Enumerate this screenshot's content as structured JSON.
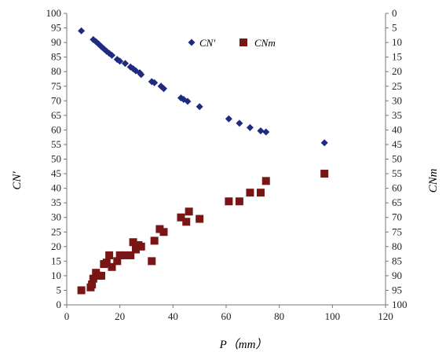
{
  "chart_data": {
    "type": "scatter",
    "xlabel": "P（mm）",
    "ylabel_left": "CN′",
    "ylabel_right": "CNm",
    "xlim": [
      0,
      120
    ],
    "xticks": [
      "0",
      "20",
      "40",
      "60",
      "80",
      "100",
      "120"
    ],
    "ylim_left": [
      0,
      100
    ],
    "yticks_left": [
      "0",
      "5",
      "10",
      "15",
      "20",
      "25",
      "30",
      "35",
      "40",
      "45",
      "50",
      "55",
      "60",
      "65",
      "70",
      "75",
      "80",
      "85",
      "90",
      "95",
      "100"
    ],
    "ylim_right_inverted": [
      100,
      0
    ],
    "yticks_right": [
      "100",
      "95",
      "90",
      "85",
      "80",
      "75",
      "70",
      "65",
      "60",
      "55",
      "50",
      "45",
      "40",
      "35",
      "30",
      "25",
      "20",
      "15",
      "10",
      "5",
      "0"
    ],
    "legend_position": "top-center",
    "series": [
      {
        "name": "CN′",
        "axis": "left",
        "marker": "diamond",
        "color": "#1f2a80",
        "points": [
          [
            5.5,
            94
          ],
          [
            10,
            91
          ],
          [
            11,
            90.3
          ],
          [
            12,
            89.5
          ],
          [
            13,
            88.6
          ],
          [
            14,
            87.8
          ],
          [
            15,
            87
          ],
          [
            16,
            86.3
          ],
          [
            17,
            85.6
          ],
          [
            19,
            84.2
          ],
          [
            20,
            83.6
          ],
          [
            22,
            82.8
          ],
          [
            24,
            81.6
          ],
          [
            25,
            81
          ],
          [
            26,
            80.3
          ],
          [
            27.5,
            79.6
          ],
          [
            28,
            79
          ],
          [
            32,
            76.6
          ],
          [
            33,
            76.2
          ],
          [
            35.5,
            75
          ],
          [
            36.5,
            74.2
          ],
          [
            43,
            71
          ],
          [
            44,
            70.5
          ],
          [
            45.5,
            69.8
          ],
          [
            50,
            68
          ],
          [
            61,
            63.8
          ],
          [
            65,
            62.3
          ],
          [
            69,
            60.8
          ],
          [
            73,
            59.7
          ],
          [
            75,
            59.3
          ],
          [
            97,
            55.6
          ]
        ]
      },
      {
        "name": "CNm",
        "axis": "right",
        "marker": "square",
        "color": "#7a1515",
        "points": [
          [
            5.5,
            95
          ],
          [
            9,
            94
          ],
          [
            9.5,
            93
          ],
          [
            10,
            91
          ],
          [
            11,
            89
          ],
          [
            12,
            90
          ],
          [
            13,
            90
          ],
          [
            14,
            86
          ],
          [
            15,
            85.5
          ],
          [
            16,
            83
          ],
          [
            17,
            87
          ],
          [
            19,
            85
          ],
          [
            20,
            83
          ],
          [
            22,
            83
          ],
          [
            24,
            83
          ],
          [
            25,
            78.5
          ],
          [
            26,
            81
          ],
          [
            27,
            79.5
          ],
          [
            28,
            80
          ],
          [
            32,
            85
          ],
          [
            33,
            78
          ],
          [
            35,
            74
          ],
          [
            36.5,
            75
          ],
          [
            43,
            70
          ],
          [
            45,
            71.5
          ],
          [
            46,
            68
          ],
          [
            50,
            70.5
          ],
          [
            61,
            64.5
          ],
          [
            65,
            64.5
          ],
          [
            69,
            61.5
          ],
          [
            73,
            61.5
          ],
          [
            75,
            57.5
          ],
          [
            97,
            55
          ]
        ]
      }
    ]
  }
}
